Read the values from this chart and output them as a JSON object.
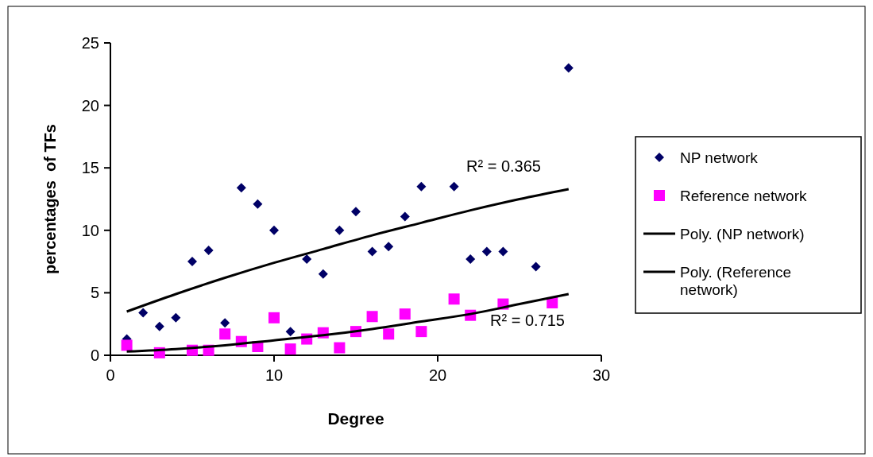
{
  "chart_data": {
    "type": "scatter",
    "xlabel": "Degree",
    "ylabel": "percentages  of TFs",
    "xlim": [
      0,
      30
    ],
    "xticks": [
      0,
      10,
      20,
      30
    ],
    "ylim": [
      0,
      25
    ],
    "yticks": [
      0,
      5,
      10,
      15,
      20,
      25
    ],
    "grid": false,
    "legend": "right",
    "series": [
      {
        "name": "NP network",
        "color": "#000066",
        "marker": "diamond",
        "x": [
          1,
          2,
          3,
          4,
          5,
          6,
          7,
          8,
          9,
          10,
          11,
          12,
          13,
          14,
          15,
          16,
          17,
          18,
          19,
          21,
          22,
          23,
          24,
          26,
          28
        ],
        "values": [
          1.3,
          3.4,
          2.3,
          3.0,
          7.5,
          8.4,
          2.6,
          13.4,
          12.1,
          10.0,
          1.9,
          7.7,
          6.5,
          10.0,
          11.5,
          8.3,
          8.7,
          11.1,
          13.5,
          13.5,
          7.7,
          8.3,
          8.3,
          7.1,
          23.0
        ]
      },
      {
        "name": "Reference network",
        "color": "#ff00ff",
        "marker": "square",
        "x": [
          1,
          3,
          5,
          6,
          7,
          8,
          9,
          10,
          11,
          12,
          13,
          14,
          15,
          16,
          17,
          18,
          19,
          21,
          22,
          24,
          27
        ],
        "values": [
          0.8,
          0.2,
          0.4,
          0.4,
          1.7,
          1.1,
          0.7,
          3.0,
          0.5,
          1.3,
          1.8,
          0.6,
          1.9,
          3.1,
          1.7,
          3.3,
          1.9,
          4.5,
          3.2,
          4.1,
          4.2
        ]
      },
      {
        "name": "Poly. (NP network)",
        "type": "line",
        "color": "#000000",
        "marker": "none",
        "x": [
          1,
          4,
          7,
          10,
          13,
          16,
          19,
          22,
          25,
          28
        ],
        "values": [
          3.5,
          4.9,
          6.2,
          7.4,
          8.5,
          9.6,
          10.6,
          11.6,
          12.5,
          13.3
        ]
      },
      {
        "name": "Poly. (Reference network)",
        "type": "line",
        "color": "#000000",
        "marker": "none",
        "x": [
          1,
          4,
          7,
          10,
          13,
          16,
          19,
          22,
          25,
          28
        ],
        "values": [
          0.3,
          0.5,
          0.8,
          1.2,
          1.6,
          2.1,
          2.7,
          3.3,
          4.1,
          4.9
        ]
      }
    ],
    "annotations": [
      "R² = 0.365",
      "R² = 0.715"
    ]
  }
}
